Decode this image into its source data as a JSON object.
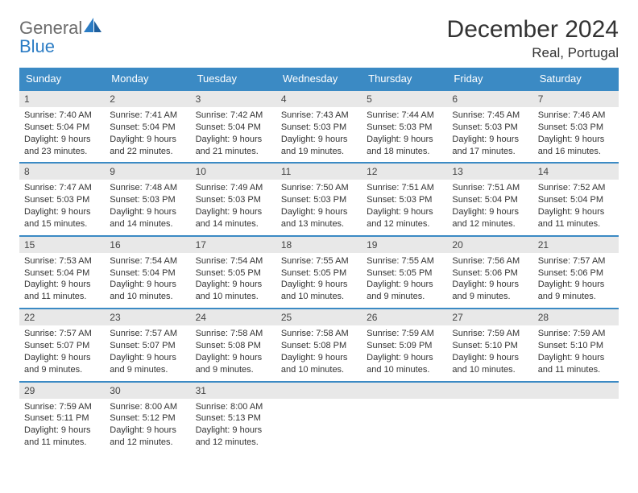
{
  "logo": {
    "general": "General",
    "blue": "Blue"
  },
  "title": "December 2024",
  "location": "Real, Portugal",
  "colors": {
    "header_bg": "#3b8ac4",
    "header_text": "#ffffff",
    "daynum_bg": "#e8e8e8",
    "border": "#3b8ac4",
    "text": "#333333",
    "logo_gray": "#6b6b6b",
    "logo_blue": "#2b7cc4"
  },
  "typography": {
    "title_fontsize": 30,
    "location_fontsize": 17,
    "dayheader_fontsize": 13,
    "daynum_fontsize": 12,
    "body_fontsize": 11
  },
  "day_headers": [
    "Sunday",
    "Monday",
    "Tuesday",
    "Wednesday",
    "Thursday",
    "Friday",
    "Saturday"
  ],
  "weeks": [
    [
      {
        "n": "1",
        "sr": "Sunrise: 7:40 AM",
        "ss": "Sunset: 5:04 PM",
        "dl": "Daylight: 9 hours and 23 minutes."
      },
      {
        "n": "2",
        "sr": "Sunrise: 7:41 AM",
        "ss": "Sunset: 5:04 PM",
        "dl": "Daylight: 9 hours and 22 minutes."
      },
      {
        "n": "3",
        "sr": "Sunrise: 7:42 AM",
        "ss": "Sunset: 5:04 PM",
        "dl": "Daylight: 9 hours and 21 minutes."
      },
      {
        "n": "4",
        "sr": "Sunrise: 7:43 AM",
        "ss": "Sunset: 5:03 PM",
        "dl": "Daylight: 9 hours and 19 minutes."
      },
      {
        "n": "5",
        "sr": "Sunrise: 7:44 AM",
        "ss": "Sunset: 5:03 PM",
        "dl": "Daylight: 9 hours and 18 minutes."
      },
      {
        "n": "6",
        "sr": "Sunrise: 7:45 AM",
        "ss": "Sunset: 5:03 PM",
        "dl": "Daylight: 9 hours and 17 minutes."
      },
      {
        "n": "7",
        "sr": "Sunrise: 7:46 AM",
        "ss": "Sunset: 5:03 PM",
        "dl": "Daylight: 9 hours and 16 minutes."
      }
    ],
    [
      {
        "n": "8",
        "sr": "Sunrise: 7:47 AM",
        "ss": "Sunset: 5:03 PM",
        "dl": "Daylight: 9 hours and 15 minutes."
      },
      {
        "n": "9",
        "sr": "Sunrise: 7:48 AM",
        "ss": "Sunset: 5:03 PM",
        "dl": "Daylight: 9 hours and 14 minutes."
      },
      {
        "n": "10",
        "sr": "Sunrise: 7:49 AM",
        "ss": "Sunset: 5:03 PM",
        "dl": "Daylight: 9 hours and 14 minutes."
      },
      {
        "n": "11",
        "sr": "Sunrise: 7:50 AM",
        "ss": "Sunset: 5:03 PM",
        "dl": "Daylight: 9 hours and 13 minutes."
      },
      {
        "n": "12",
        "sr": "Sunrise: 7:51 AM",
        "ss": "Sunset: 5:03 PM",
        "dl": "Daylight: 9 hours and 12 minutes."
      },
      {
        "n": "13",
        "sr": "Sunrise: 7:51 AM",
        "ss": "Sunset: 5:04 PM",
        "dl": "Daylight: 9 hours and 12 minutes."
      },
      {
        "n": "14",
        "sr": "Sunrise: 7:52 AM",
        "ss": "Sunset: 5:04 PM",
        "dl": "Daylight: 9 hours and 11 minutes."
      }
    ],
    [
      {
        "n": "15",
        "sr": "Sunrise: 7:53 AM",
        "ss": "Sunset: 5:04 PM",
        "dl": "Daylight: 9 hours and 11 minutes."
      },
      {
        "n": "16",
        "sr": "Sunrise: 7:54 AM",
        "ss": "Sunset: 5:04 PM",
        "dl": "Daylight: 9 hours and 10 minutes."
      },
      {
        "n": "17",
        "sr": "Sunrise: 7:54 AM",
        "ss": "Sunset: 5:05 PM",
        "dl": "Daylight: 9 hours and 10 minutes."
      },
      {
        "n": "18",
        "sr": "Sunrise: 7:55 AM",
        "ss": "Sunset: 5:05 PM",
        "dl": "Daylight: 9 hours and 10 minutes."
      },
      {
        "n": "19",
        "sr": "Sunrise: 7:55 AM",
        "ss": "Sunset: 5:05 PM",
        "dl": "Daylight: 9 hours and 9 minutes."
      },
      {
        "n": "20",
        "sr": "Sunrise: 7:56 AM",
        "ss": "Sunset: 5:06 PM",
        "dl": "Daylight: 9 hours and 9 minutes."
      },
      {
        "n": "21",
        "sr": "Sunrise: 7:57 AM",
        "ss": "Sunset: 5:06 PM",
        "dl": "Daylight: 9 hours and 9 minutes."
      }
    ],
    [
      {
        "n": "22",
        "sr": "Sunrise: 7:57 AM",
        "ss": "Sunset: 5:07 PM",
        "dl": "Daylight: 9 hours and 9 minutes."
      },
      {
        "n": "23",
        "sr": "Sunrise: 7:57 AM",
        "ss": "Sunset: 5:07 PM",
        "dl": "Daylight: 9 hours and 9 minutes."
      },
      {
        "n": "24",
        "sr": "Sunrise: 7:58 AM",
        "ss": "Sunset: 5:08 PM",
        "dl": "Daylight: 9 hours and 9 minutes."
      },
      {
        "n": "25",
        "sr": "Sunrise: 7:58 AM",
        "ss": "Sunset: 5:08 PM",
        "dl": "Daylight: 9 hours and 10 minutes."
      },
      {
        "n": "26",
        "sr": "Sunrise: 7:59 AM",
        "ss": "Sunset: 5:09 PM",
        "dl": "Daylight: 9 hours and 10 minutes."
      },
      {
        "n": "27",
        "sr": "Sunrise: 7:59 AM",
        "ss": "Sunset: 5:10 PM",
        "dl": "Daylight: 9 hours and 10 minutes."
      },
      {
        "n": "28",
        "sr": "Sunrise: 7:59 AM",
        "ss": "Sunset: 5:10 PM",
        "dl": "Daylight: 9 hours and 11 minutes."
      }
    ],
    [
      {
        "n": "29",
        "sr": "Sunrise: 7:59 AM",
        "ss": "Sunset: 5:11 PM",
        "dl": "Daylight: 9 hours and 11 minutes."
      },
      {
        "n": "30",
        "sr": "Sunrise: 8:00 AM",
        "ss": "Sunset: 5:12 PM",
        "dl": "Daylight: 9 hours and 12 minutes."
      },
      {
        "n": "31",
        "sr": "Sunrise: 8:00 AM",
        "ss": "Sunset: 5:13 PM",
        "dl": "Daylight: 9 hours and 12 minutes."
      },
      null,
      null,
      null,
      null
    ]
  ]
}
